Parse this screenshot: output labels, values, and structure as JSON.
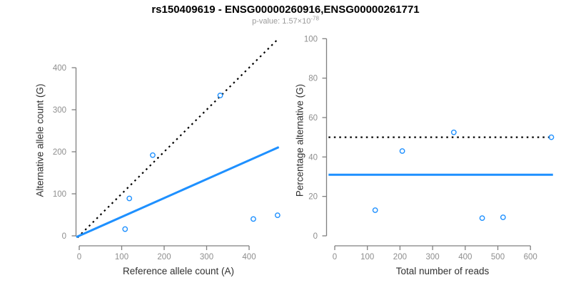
{
  "header": {
    "title": "rs150409619 - ENSG00000260916,ENSG00000261771",
    "subtitle_text": "p-value: 1.57×10",
    "subtitle_exponent": "-78"
  },
  "colors": {
    "accent_blue": "#1E90FF",
    "line_black": "#000000",
    "axis_gray": "#808080",
    "tick_text_gray": "#8e8e8e",
    "label_dark": "#303030",
    "subtitle_gray": "#9b9b9b"
  },
  "chart_data": [
    {
      "id": "left",
      "type": "scatter",
      "xlabel": "Reference allele count (A)",
      "ylabel": "Alternative allele count (G)",
      "xticks": [
        0,
        100,
        200,
        300,
        400
      ],
      "yticks": [
        0,
        100,
        200,
        300,
        400
      ],
      "xlim": [
        -10,
        476
      ],
      "ylim": [
        -10,
        467
      ],
      "grid": false,
      "legend": false,
      "points": [
        {
          "x": 108,
          "y": 16
        },
        {
          "x": 118,
          "y": 89
        },
        {
          "x": 173,
          "y": 192
        },
        {
          "x": 332,
          "y": 334
        },
        {
          "x": 410,
          "y": 40
        },
        {
          "x": 467,
          "y": 49
        }
      ],
      "lines": [
        {
          "name": "identity-line",
          "style": "dotted",
          "color": "line_black",
          "x1": -4,
          "y1": -4,
          "x2": 467,
          "y2": 467
        },
        {
          "name": "regression-line",
          "style": "solid",
          "color": "accent_blue",
          "x1": -7,
          "y1": -3,
          "x2": 470,
          "y2": 211
        }
      ]
    },
    {
      "id": "right",
      "type": "scatter",
      "xlabel": "Total number of reads",
      "ylabel": "Percentage alternative (G)",
      "xticks": [
        0,
        100,
        200,
        300,
        400,
        500,
        600
      ],
      "yticks": [
        0,
        20,
        40,
        60,
        80,
        100
      ],
      "xlim": [
        -20,
        670
      ],
      "ylim": [
        -5,
        105
      ],
      "grid": false,
      "legend": false,
      "points": [
        {
          "x": 124,
          "y": 13
        },
        {
          "x": 207,
          "y": 43
        },
        {
          "x": 365,
          "y": 52.5
        },
        {
          "x": 452,
          "y": 9
        },
        {
          "x": 516,
          "y": 9.4
        },
        {
          "x": 664,
          "y": 50
        }
      ],
      "lines": [
        {
          "name": "expected-percentage-line",
          "style": "dotted",
          "color": "line_black",
          "x1": -19,
          "y1": 50,
          "x2": 669,
          "y2": 50
        },
        {
          "name": "mean-percentage-line",
          "style": "solid",
          "color": "accent_blue",
          "x1": -19,
          "y1": 31,
          "x2": 669,
          "y2": 31
        }
      ]
    }
  ]
}
